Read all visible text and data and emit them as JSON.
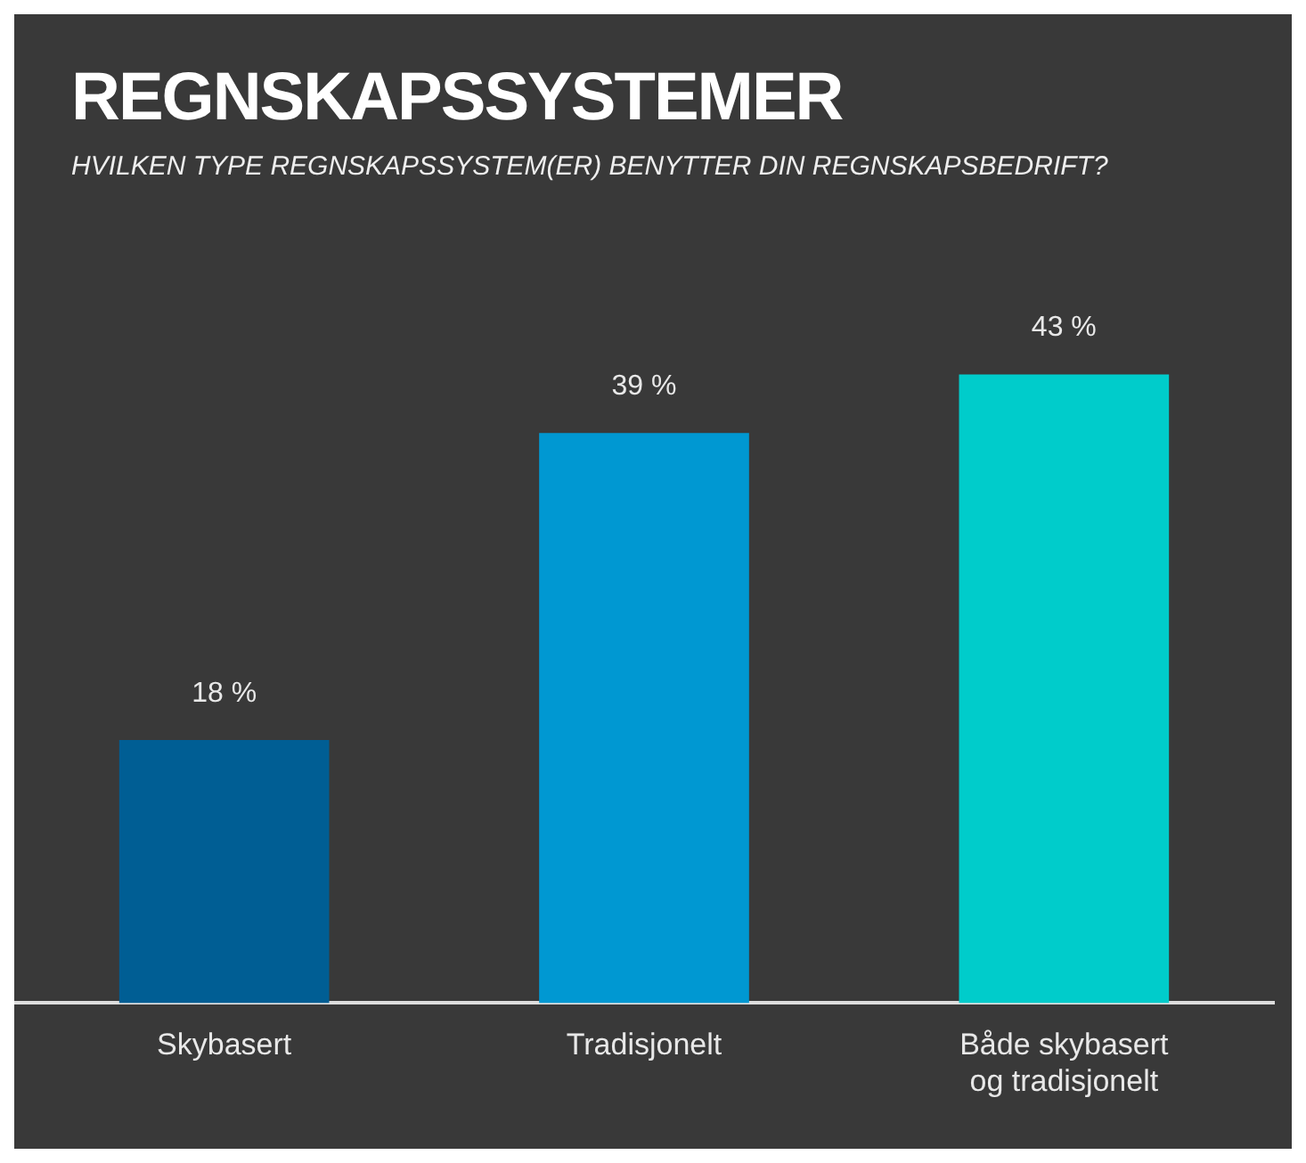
{
  "chart_data": {
    "type": "bar",
    "title": "REGNSKAPSSYSTEMER",
    "subtitle": "HVILKEN TYPE REGNSKAPSSYSTEM(ER) BENYTTER DIN REGNSKAPSBEDRIFT?",
    "categories": [
      "Skybasert",
      "Tradisjonelt",
      "Både skybasert og tradisjonelt"
    ],
    "values": [
      18,
      39,
      43
    ],
    "colors": [
      "#005e94",
      "#0098d2",
      "#00cccb"
    ],
    "value_labels": [
      "18 %",
      "39 %",
      "43 %"
    ],
    "grid": false,
    "legend": false
  }
}
